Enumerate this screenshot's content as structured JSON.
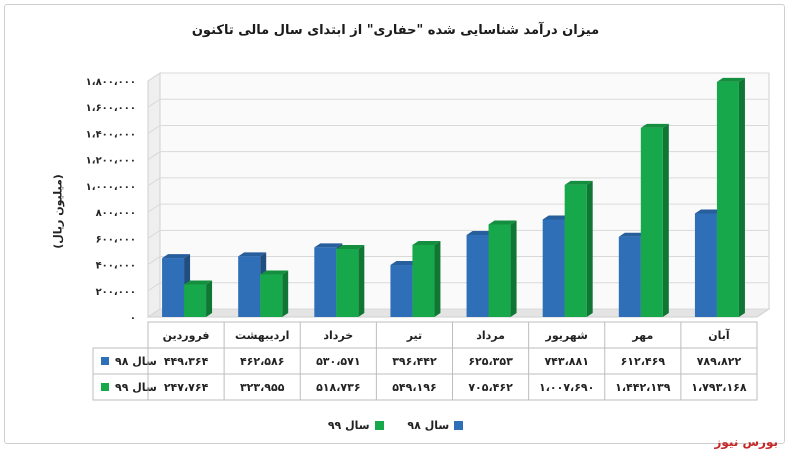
{
  "title": "میزان درآمد شناسایی شده \"حفاری\" از ابتدای سال مالی تاکنون",
  "watermark": "بورس نیوز",
  "colors": {
    "series98": "#2e6fb7",
    "series99": "#16a84a",
    "grid": "#d9d9d9",
    "wall": "#e8e8e8"
  },
  "chart_data": {
    "type": "bar",
    "title": "میزان درآمد شناسایی شده \"حفاری\" از ابتدای سال مالی تاکنون",
    "ylabel": "(میلیون ریال)",
    "xlabel": "",
    "ylim": [
      0,
      1800000
    ],
    "yticks": [
      0,
      200000,
      400000,
      600000,
      800000,
      1000000,
      1200000,
      1400000,
      1600000,
      1800000
    ],
    "ytick_labels": [
      "۰",
      "۲۰۰،۰۰۰",
      "۴۰۰،۰۰۰",
      "۶۰۰،۰۰۰",
      "۸۰۰،۰۰۰",
      "۱،۰۰۰،۰۰۰",
      "۱،۲۰۰،۰۰۰",
      "۱،۴۰۰،۰۰۰",
      "۱،۶۰۰،۰۰۰",
      "۱،۸۰۰،۰۰۰"
    ],
    "grid": true,
    "legend_position": "bottom",
    "categories": [
      "فروردین",
      "اردیبهشت",
      "خرداد",
      "تیر",
      "مرداد",
      "شهریور",
      "مهر",
      "آبان"
    ],
    "series": [
      {
        "name": "سال ۹۸",
        "values": [
          449364,
          462586,
          530571,
          396442,
          625353,
          743881,
          612469,
          789822
        ],
        "labels": [
          "۴۴۹،۳۶۴",
          "۴۶۲،۵۸۶",
          "۵۳۰،۵۷۱",
          "۳۹۶،۴۴۲",
          "۶۲۵،۳۵۳",
          "۷۴۳،۸۸۱",
          "۶۱۲،۴۶۹",
          "۷۸۹،۸۲۲"
        ]
      },
      {
        "name": "سال ۹۹",
        "values": [
          247764,
          323955,
          518736,
          549196,
          705462,
          1007690,
          1442139,
          1793168
        ],
        "labels": [
          "۲۴۷،۷۶۴",
          "۳۲۳،۹۵۵",
          "۵۱۸،۷۳۶",
          "۵۴۹،۱۹۶",
          "۷۰۵،۴۶۲",
          "۱،۰۰۷،۶۹۰",
          "۱،۴۴۲،۱۳۹",
          "۱،۷۹۳،۱۶۸"
        ]
      }
    ]
  }
}
